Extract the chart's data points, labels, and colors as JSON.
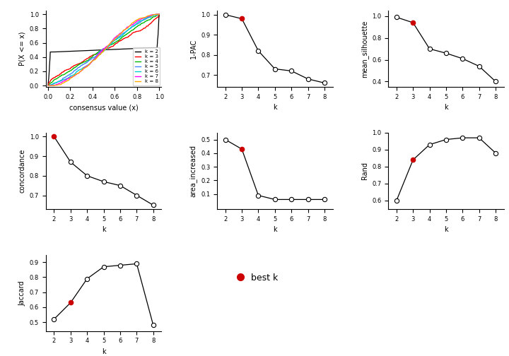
{
  "k_values": [
    2,
    3,
    4,
    5,
    6,
    7,
    8
  ],
  "one_pac": [
    1.0,
    0.98,
    0.82,
    0.73,
    0.72,
    0.68,
    0.66
  ],
  "mean_silhouette": [
    0.99,
    0.94,
    0.7,
    0.66,
    0.61,
    0.54,
    0.4
  ],
  "concordance": [
    1.0,
    0.87,
    0.8,
    0.77,
    0.75,
    0.7,
    0.65
  ],
  "area_increased": [
    0.5,
    0.43,
    0.09,
    0.06,
    0.06,
    0.06,
    0.06
  ],
  "rand": [
    0.6,
    0.84,
    0.93,
    0.96,
    0.97,
    0.97,
    0.88
  ],
  "jaccard": [
    0.52,
    0.63,
    0.79,
    0.87,
    0.88,
    0.89,
    0.48
  ],
  "one_pac_best_k_idx": 1,
  "mean_sil_best_k_idx": 1,
  "concordance_best_k_idx": 0,
  "area_best_k_idx": 1,
  "rand_best_k_idx": 1,
  "jaccard_best_k_idx": 1,
  "best_k": 3,
  "ecdf_colors": [
    "#000000",
    "#ff0000",
    "#00bb00",
    "#4488ff",
    "#00cccc",
    "#ff00ff",
    "#ffaa00"
  ],
  "ecdf_k_labels": [
    "k = 2",
    "k = 3",
    "k = 4",
    "k = 5",
    "k = 6",
    "k = 7",
    "k = 8"
  ],
  "red_dot_color": "#cc0000",
  "line_color": "#000000",
  "bg_color": "#ffffff"
}
